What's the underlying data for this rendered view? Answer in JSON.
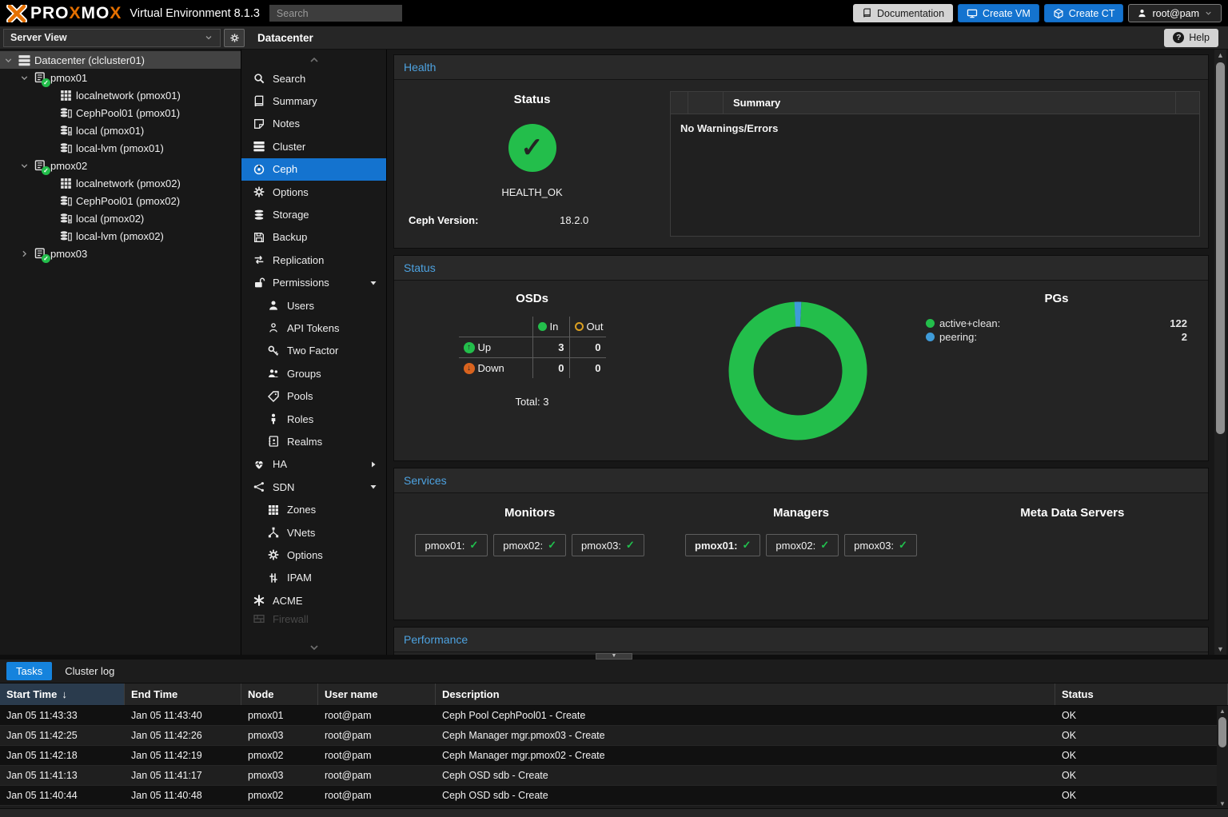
{
  "topbar": {
    "logo_segments": [
      {
        "t": "PRO",
        "cls": "w"
      },
      {
        "t": "X",
        "cls": "o"
      },
      {
        "t": "MO",
        "cls": "w"
      },
      {
        "t": "X",
        "cls": "o"
      }
    ],
    "subtitle": "Virtual Environment 8.1.3",
    "search_placeholder": "Search",
    "documentation_label": "Documentation",
    "create_vm_label": "Create VM",
    "create_ct_label": "Create CT",
    "user_label": "root@pam"
  },
  "subheader": {
    "view_selector": "Server View",
    "breadcrumb": "Datacenter",
    "help_label": "Help",
    "help_glyph": "?"
  },
  "tree": {
    "items": [
      {
        "name": "tree-item-datacenter",
        "caret": "#i-chev-down",
        "icon": "#i-server",
        "label": "Datacenter (clcluster01)",
        "selected": true,
        "depth": 0
      },
      {
        "name": "tree-item-pmox01",
        "caret": "#i-chev-down",
        "icon": "#i-node",
        "badge": true,
        "label": "pmox01",
        "depth": 1
      },
      {
        "name": "tree-item-localnetwork-pmox01",
        "icon": "#i-grid",
        "label": "localnetwork (pmox01)",
        "depth": 2
      },
      {
        "name": "tree-item-cephpool01-pmox01",
        "icon": "#i-db",
        "label": "CephPool01 (pmox01)",
        "depth": 2
      },
      {
        "name": "tree-item-local-pmox01",
        "icon": "#i-db2",
        "label": "local (pmox01)",
        "depth": 2
      },
      {
        "name": "tree-item-local-lvm-pmox01",
        "icon": "#i-db",
        "label": "local-lvm (pmox01)",
        "depth": 2
      },
      {
        "name": "tree-item-pmox02",
        "caret": "#i-chev-down",
        "icon": "#i-node",
        "badge": true,
        "label": "pmox02",
        "depth": 1
      },
      {
        "name": "tree-item-localnetwork-pmox02",
        "icon": "#i-grid",
        "label": "localnetwork (pmox02)",
        "depth": 2
      },
      {
        "name": "tree-item-cephpool01-pmox02",
        "icon": "#i-db",
        "label": "CephPool01 (pmox02)",
        "depth": 2
      },
      {
        "name": "tree-item-local-pmox02",
        "icon": "#i-db2",
        "label": "local (pmox02)",
        "depth": 2
      },
      {
        "name": "tree-item-local-lvm-pmox02",
        "icon": "#i-db",
        "label": "local-lvm (pmox02)",
        "depth": 2
      },
      {
        "name": "tree-item-pmox03",
        "caret": "#i-chev-right",
        "icon": "#i-node",
        "badge": true,
        "label": "pmox03",
        "depth": 1
      }
    ]
  },
  "menu": {
    "items": [
      {
        "name": "menu-item-search",
        "icon": "#i-search",
        "label": "Search"
      },
      {
        "name": "menu-item-summary",
        "icon": "#i-book",
        "label": "Summary"
      },
      {
        "name": "menu-item-notes",
        "icon": "#i-note",
        "label": "Notes"
      },
      {
        "name": "menu-item-cluster",
        "icon": "#i-server",
        "label": "Cluster"
      },
      {
        "name": "menu-item-ceph",
        "icon": "#i-ceph",
        "label": "Ceph",
        "selected": true
      },
      {
        "name": "menu-item-options",
        "icon": "#i-gear",
        "label": "Options"
      },
      {
        "name": "menu-item-storage",
        "icon": "#i-dbplain",
        "label": "Storage"
      },
      {
        "name": "menu-item-backup",
        "icon": "#i-floppy",
        "label": "Backup"
      },
      {
        "name": "menu-item-replication",
        "icon": "#i-repl",
        "label": "Replication"
      },
      {
        "name": "menu-item-permissions",
        "icon": "#i-unlock",
        "label": "Permissions",
        "trail": "#i-caret-down"
      },
      {
        "name": "menu-item-users",
        "icon": "#i-user",
        "label": "Users",
        "indent": true
      },
      {
        "name": "menu-item-api-tokens",
        "icon": "#i-user-o",
        "label": "API Tokens",
        "indent": true
      },
      {
        "name": "menu-item-two-factor",
        "icon": "#i-key",
        "label": "Two Factor",
        "indent": true
      },
      {
        "name": "menu-item-groups",
        "icon": "#i-users",
        "label": "Groups",
        "indent": true
      },
      {
        "name": "menu-item-pools",
        "icon": "#i-tag",
        "label": "Pools",
        "indent": true
      },
      {
        "name": "menu-item-roles",
        "icon": "#i-person",
        "label": "Roles",
        "indent": true
      },
      {
        "name": "menu-item-realms",
        "icon": "#i-addrbook",
        "label": "Realms",
        "indent": true
      },
      {
        "name": "menu-item-ha",
        "icon": "#i-heart",
        "label": "HA",
        "trail": "#i-caret-right"
      },
      {
        "name": "menu-item-sdn",
        "icon": "#i-sdn",
        "label": "SDN",
        "trail": "#i-caret-down"
      },
      {
        "name": "menu-item-zones",
        "icon": "#i-grid",
        "label": "Zones",
        "indent": true
      },
      {
        "name": "menu-item-vnets",
        "icon": "#i-vnets",
        "label": "VNets",
        "indent": true
      },
      {
        "name": "menu-item-sdn-options",
        "icon": "#i-gear",
        "label": "Options",
        "indent": true
      },
      {
        "name": "menu-item-ipam",
        "icon": "#i-ipam",
        "label": "IPAM",
        "indent": true
      },
      {
        "name": "menu-item-acme",
        "icon": "#i-acme",
        "label": "ACME"
      },
      {
        "name": "menu-item-firewall",
        "icon": "#i-fire",
        "label": "Firewall",
        "partial": true
      }
    ]
  },
  "health": {
    "section_title": "Health",
    "status_title": "Status",
    "check_glyph": "✓",
    "status_value": "HEALTH_OK",
    "version_label": "Ceph Version:",
    "version_value": "18.2.0",
    "summary_header": "Summary",
    "summary_message": "No Warnings/Errors"
  },
  "status": {
    "section_title": "Status",
    "osds": {
      "title": "OSDs",
      "col_in": "In",
      "col_out": "Out",
      "row_up": "Up",
      "row_down": "Down",
      "up_glyph": "↑",
      "down_glyph": "↓",
      "up_in": "3",
      "up_out": "0",
      "down_in": "0",
      "down_out": "0",
      "total": "Total: 3"
    },
    "pgs": {
      "title": "PGs",
      "legend": [
        {
          "label": "active+clean:",
          "value": "122",
          "color": "#23be4b"
        },
        {
          "label": "peering:",
          "value": "2",
          "color": "#3f9bd8"
        }
      ]
    }
  },
  "chart_data": {
    "type": "pie",
    "donut": true,
    "title": "PGs",
    "legend_position": "right",
    "slices": [
      {
        "label": "active+clean",
        "value": 122,
        "color": "#23be4b"
      },
      {
        "label": "peering",
        "value": 2,
        "color": "#3f9bd8"
      }
    ]
  },
  "services": {
    "section_title": "Services",
    "monitors": {
      "title": "Monitors",
      "items": [
        {
          "label": "pmox01:",
          "ok": "✓"
        },
        {
          "label": "pmox02:",
          "ok": "✓"
        },
        {
          "label": "pmox03:",
          "ok": "✓"
        }
      ]
    },
    "managers": {
      "title": "Managers",
      "items": [
        {
          "label": "pmox01:",
          "ok": "✓",
          "active": true
        },
        {
          "label": "pmox02:",
          "ok": "✓"
        },
        {
          "label": "pmox03:",
          "ok": "✓"
        }
      ]
    },
    "mds": {
      "title": "Meta Data Servers",
      "items": []
    }
  },
  "performance": {
    "section_title": "Performance"
  },
  "tasks": {
    "tab_tasks": "Tasks",
    "tab_cluster_log": "Cluster log",
    "columns": {
      "start": "Start Time",
      "sort_glyph": "↓",
      "end": "End Time",
      "node": "Node",
      "user": "User name",
      "desc": "Description",
      "status": "Status"
    },
    "rows": [
      {
        "start": "Jan 05 11:43:33",
        "end": "Jan 05 11:43:40",
        "node": "pmox01",
        "user": "root@pam",
        "desc": "Ceph Pool CephPool01 - Create",
        "status": "OK"
      },
      {
        "start": "Jan 05 11:42:25",
        "end": "Jan 05 11:42:26",
        "node": "pmox03",
        "user": "root@pam",
        "desc": "Ceph Manager mgr.pmox03 - Create",
        "status": "OK"
      },
      {
        "start": "Jan 05 11:42:18",
        "end": "Jan 05 11:42:19",
        "node": "pmox02",
        "user": "root@pam",
        "desc": "Ceph Manager mgr.pmox02 - Create",
        "status": "OK"
      },
      {
        "start": "Jan 05 11:41:13",
        "end": "Jan 05 11:41:17",
        "node": "pmox03",
        "user": "root@pam",
        "desc": "Ceph OSD sdb - Create",
        "status": "OK"
      },
      {
        "start": "Jan 05 11:40:44",
        "end": "Jan 05 11:40:48",
        "node": "pmox02",
        "user": "root@pam",
        "desc": "Ceph OSD sdb - Create",
        "status": "OK"
      }
    ]
  },
  "colors": {
    "brand_orange": "#e57000",
    "accent_blue": "#1473cf",
    "tab_blue": "#1583dd",
    "section_title_blue": "#4da2e0",
    "ok_green": "#23be4b",
    "peering_blue": "#3f9bd8",
    "out_orange": "#dba021",
    "down_orange": "#d9631e"
  }
}
